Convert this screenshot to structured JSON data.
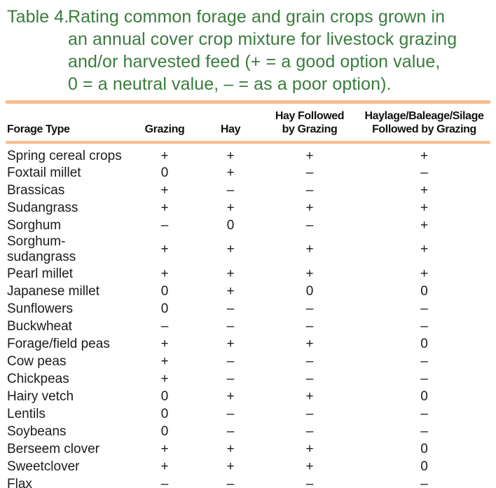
{
  "title": {
    "label": "Table 4.",
    "lines": [
      "Rating common forage and grain crops grown in",
      "an annual cover crop mixture for livestock grazing",
      "and/or harvested feed (+ = a good option value,",
      "0 = a neutral value, – = as a poor option)."
    ]
  },
  "table": {
    "columns": [
      "Forage Type",
      "Grazing",
      "Hay",
      "Hay Followed\nby Grazing",
      "Haylage/Baleage/Silage\nFollowed by Grazing"
    ],
    "rows": [
      {
        "name": "Spring cereal crops",
        "values": [
          "+",
          "+",
          "+",
          "+"
        ]
      },
      {
        "name": "Foxtail millet",
        "values": [
          "0",
          "+",
          "–",
          "–"
        ]
      },
      {
        "name": "Brassicas",
        "values": [
          "+",
          "–",
          "–",
          "+"
        ]
      },
      {
        "name": "Sudangrass",
        "values": [
          "+",
          "+",
          "+",
          "+"
        ]
      },
      {
        "name": "Sorghum",
        "values": [
          "–",
          "0",
          "–",
          "+"
        ]
      },
      {
        "name": "Sorghum-sudangrass",
        "values": [
          "+",
          "+",
          "+",
          "+"
        ]
      },
      {
        "name": "Pearl millet",
        "values": [
          "+",
          "+",
          "+",
          "+"
        ]
      },
      {
        "name": "Japanese millet",
        "values": [
          "0",
          "+",
          "0",
          "0"
        ]
      },
      {
        "name": "Sunflowers",
        "values": [
          "0",
          "–",
          "–",
          "–"
        ]
      },
      {
        "name": "Buckwheat",
        "values": [
          "–",
          "–",
          "–",
          "–"
        ]
      },
      {
        "name": "Forage/field peas",
        "values": [
          "+",
          "+",
          "+",
          "0"
        ]
      },
      {
        "name": "Cow peas",
        "values": [
          "+",
          "–",
          "–",
          "–"
        ]
      },
      {
        "name": "Chickpeas",
        "values": [
          "+",
          "–",
          "–",
          "–"
        ]
      },
      {
        "name": "Hairy vetch",
        "values": [
          "0",
          "+",
          "+",
          "0"
        ]
      },
      {
        "name": "Lentils",
        "values": [
          "0",
          "–",
          "–",
          "–"
        ]
      },
      {
        "name": "Soybeans",
        "values": [
          "0",
          "–",
          "–",
          "–"
        ]
      },
      {
        "name": "Berseem clover",
        "values": [
          "+",
          "+",
          "+",
          "0"
        ]
      },
      {
        "name": "Sweetclover",
        "values": [
          "+",
          "+",
          "+",
          "0"
        ]
      },
      {
        "name": "Flax",
        "values": [
          "–",
          "–",
          "–",
          "–"
        ]
      }
    ]
  },
  "legend": {
    "good": "+",
    "neutral": "0",
    "poor": "–"
  },
  "colors": {
    "title_green": "#3a7c3e",
    "rule_orange": "#f8bd8e",
    "body_text": "#1b1b1b",
    "header_text": "#111111",
    "background": "#ffffff"
  }
}
